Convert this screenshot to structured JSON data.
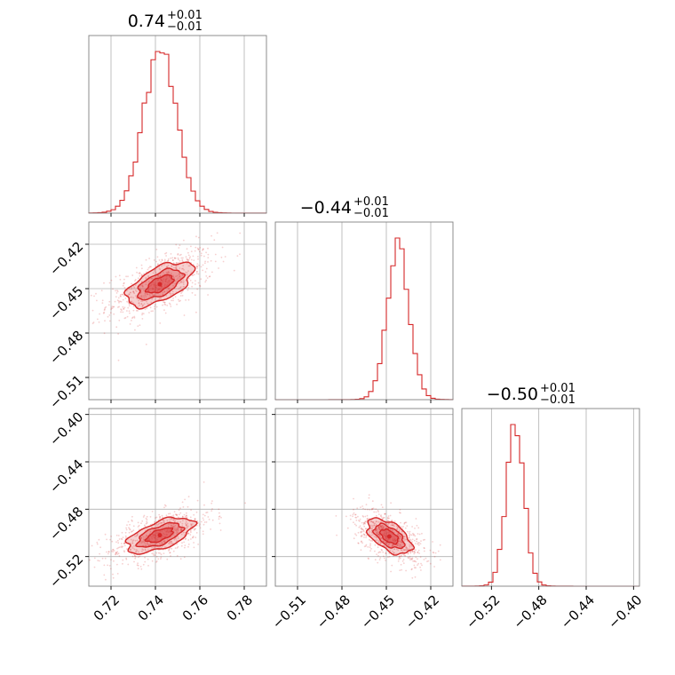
{
  "colors": {
    "series": "#d62728",
    "grid": "#b0b0b0",
    "frame": "#808080"
  },
  "chart_data": {
    "type": "corner",
    "parameters": [
      {
        "index": 0,
        "median": "0.74",
        "plus": "+0.01",
        "minus": "−0.01",
        "range": [
          0.71,
          0.79
        ],
        "mode": 0.742,
        "sigma": 0.0075,
        "ticks": [
          0.72,
          0.74,
          0.76,
          0.78
        ],
        "tick_labels": [
          "0.72",
          "0.74",
          "0.76",
          "0.78"
        ]
      },
      {
        "index": 1,
        "median": "−0.44",
        "plus": "+0.01",
        "minus": "−0.01",
        "range": [
          -0.525,
          -0.405
        ],
        "mode": -0.442,
        "sigma": 0.0075,
        "ticks": [
          -0.51,
          -0.48,
          -0.45,
          -0.42
        ],
        "tick_labels": [
          "−0.51",
          "−0.48",
          "−0.45",
          "−0.42"
        ]
      },
      {
        "index": 2,
        "median": "−0.50",
        "plus": "+0.01",
        "minus": "−0.01",
        "range": [
          -0.545,
          -0.395
        ],
        "mode": -0.5,
        "sigma": 0.0075,
        "ticks": [
          -0.52,
          -0.48,
          -0.44,
          -0.4
        ],
        "tick_labels": [
          "−0.52",
          "−0.48",
          "−0.44",
          "−0.40"
        ]
      }
    ],
    "panels_2d": [
      {
        "row": 1,
        "col": 0,
        "center": [
          0.742,
          -0.447
        ],
        "rho": 0.6
      },
      {
        "row": 2,
        "col": 0,
        "center": [
          0.742,
          -0.502
        ],
        "rho": 0.6
      },
      {
        "row": 2,
        "col": 1,
        "center": [
          -0.448,
          -0.503
        ],
        "rho": -0.55
      }
    ],
    "grid": true
  }
}
